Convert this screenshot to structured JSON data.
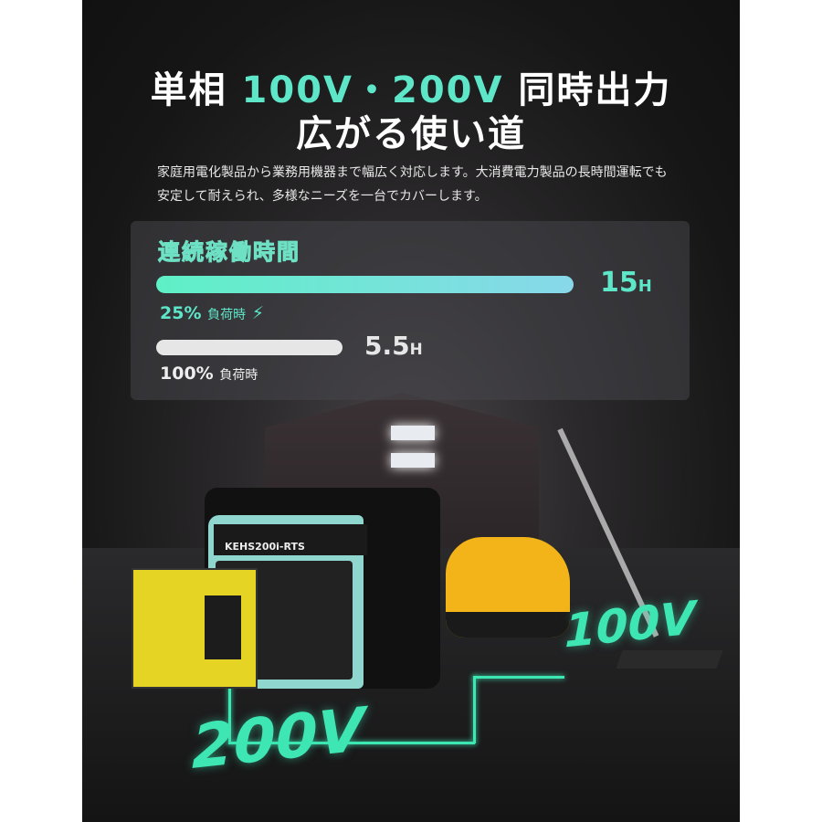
{
  "headline": {
    "line1_pre": "単相 ",
    "line1_accent": "100V・200V",
    "line1_post": " 同時出力",
    "line2": "広がる使い道"
  },
  "description": "家庭用電化製品から業務用機器まで幅広く対応します。大消費電力製品の長時間運転でも安定して耐えられ、多様なニーズを一台でカバーします。",
  "runtime": {
    "title": "連続稼働時間",
    "rows": [
      {
        "load": "25%",
        "load_suffix": "負荷時",
        "value": "15",
        "unit": "H",
        "hours": 15,
        "icon": "lightning-icon",
        "color": "#5ee6c8"
      },
      {
        "load": "100%",
        "load_suffix": "負荷時",
        "value": "5.5",
        "unit": "H",
        "hours": 5.5,
        "color": "#e6e6e6"
      }
    ]
  },
  "product": {
    "model": "KEHS200i-RTS"
  },
  "voltage_labels": {
    "left": "200V",
    "right": "100V"
  },
  "colors": {
    "accent": "#3de6b2",
    "background": "#1a1a1a"
  }
}
